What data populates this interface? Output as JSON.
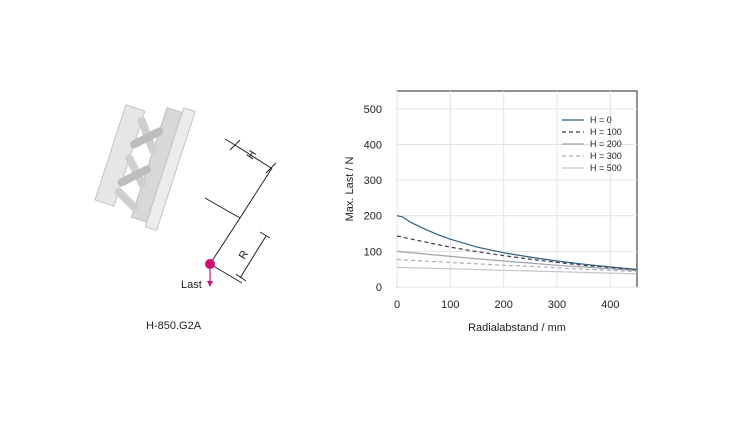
{
  "diagram": {
    "model": "H-850.G2A",
    "label_h": "H",
    "label_r": "R",
    "label_load": "Last",
    "load_color": "#cc1177"
  },
  "chart_data": {
    "type": "line",
    "title": "",
    "xlabel": "Radialabstand / mm",
    "ylabel": "Max. Last / N",
    "xlim": [
      0,
      450
    ],
    "ylim": [
      0,
      550
    ],
    "xticks": [
      0,
      100,
      200,
      300,
      400
    ],
    "yticks": [
      0,
      100,
      200,
      300,
      400,
      500
    ],
    "grid": true,
    "legend_position": "top-right",
    "series": [
      {
        "name": "H = 0",
        "color": "#2e5f82",
        "dash": "solid",
        "x": [
          0,
          10,
          25,
          50,
          75,
          100,
          150,
          200,
          250,
          300,
          350,
          400,
          450
        ],
        "y": [
          200,
          197,
          182,
          164,
          148,
          134,
          112,
          96,
          84,
          73,
          64,
          56,
          49
        ]
      },
      {
        "name": "H = 100",
        "color": "#3a3a4a",
        "dash": "dashed",
        "x": [
          0,
          50,
          100,
          150,
          200,
          250,
          300,
          350,
          400,
          450
        ],
        "y": [
          143,
          127,
          112,
          99,
          88,
          78,
          69,
          61,
          55,
          48
        ]
      },
      {
        "name": "H = 200",
        "color": "#9aa3ab",
        "dash": "solid",
        "x": [
          0,
          50,
          100,
          150,
          200,
          250,
          300,
          350,
          400,
          450
        ],
        "y": [
          100,
          93,
          86,
          79,
          73,
          67,
          61,
          56,
          51,
          46
        ]
      },
      {
        "name": "H = 300",
        "color": "#a9aeb3",
        "dash": "dashed",
        "x": [
          0,
          50,
          100,
          150,
          200,
          250,
          300,
          350,
          400,
          450
        ],
        "y": [
          77,
          73,
          69,
          65,
          61,
          58,
          54,
          50,
          47,
          43
        ]
      },
      {
        "name": "H = 500",
        "color": "#c3c6c9",
        "dash": "solid",
        "x": [
          0,
          50,
          100,
          150,
          200,
          250,
          300,
          350,
          400,
          450
        ],
        "y": [
          55,
          53,
          51,
          49,
          47,
          45,
          43,
          41,
          39,
          37
        ]
      }
    ]
  }
}
